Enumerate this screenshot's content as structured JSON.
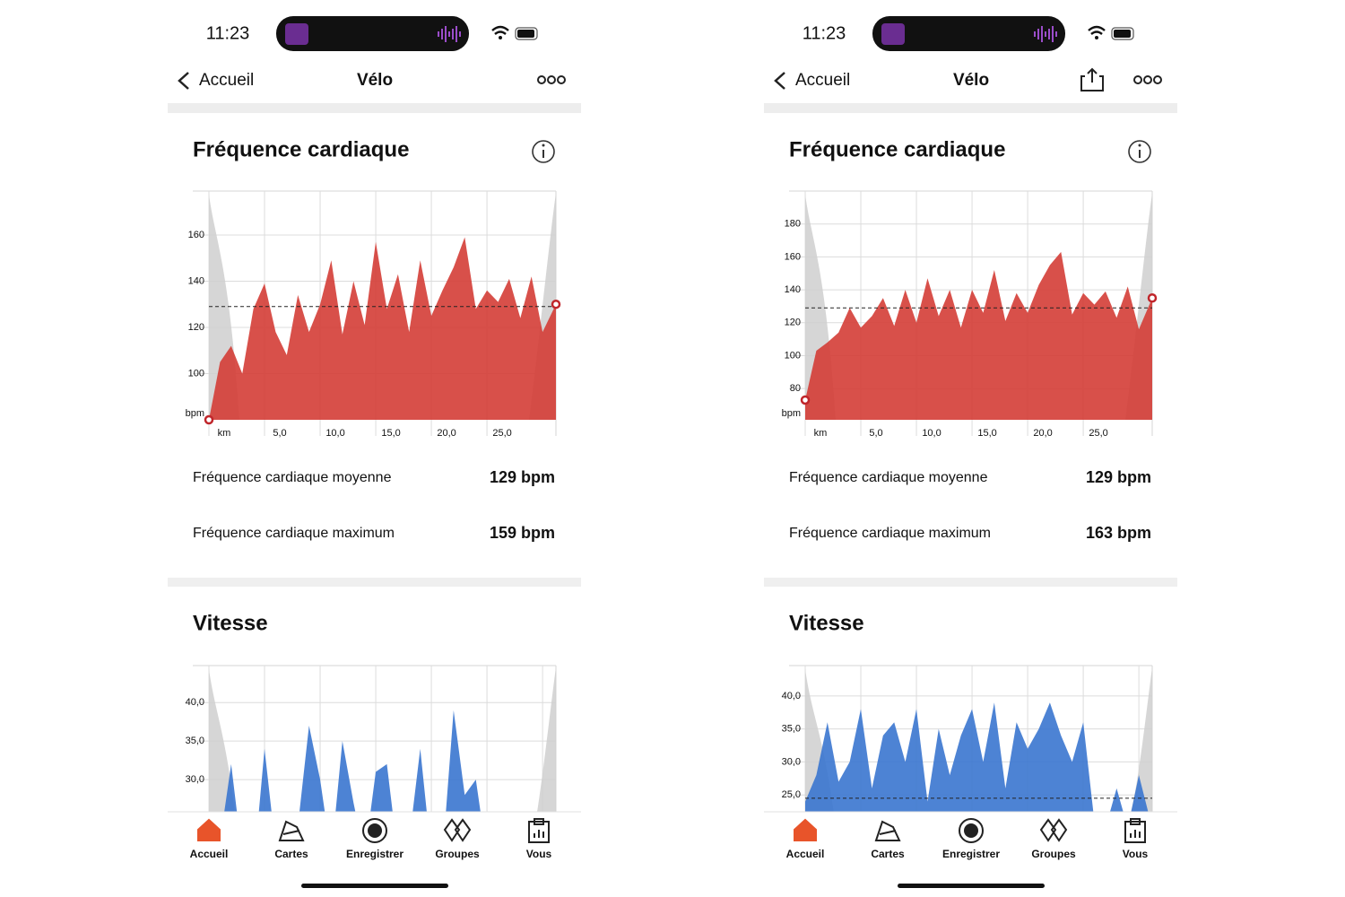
{
  "screens": [
    {
      "status_time": "11:23",
      "nav": {
        "back": "Accueil",
        "title": "Vélo"
      },
      "hr_section": {
        "title": "Fréquence cardiaque",
        "chart": {
          "type": "area",
          "y_unit": "bpm",
          "color": "#d43d36",
          "xlim": [
            0,
            31.2
          ],
          "ylim": [
            80,
            179
          ],
          "yticks": [
            100,
            120,
            140,
            160
          ],
          "xticks": [
            {
              "value": 0,
              "label": "km"
            },
            {
              "value": 5,
              "label": "5,0"
            },
            {
              "value": 10,
              "label": "10,0"
            },
            {
              "value": 15,
              "label": "15,0"
            },
            {
              "value": 20,
              "label": "20,0"
            },
            {
              "value": 25,
              "label": "25,0"
            }
          ],
          "average": 129,
          "x": [
            0,
            1,
            2,
            3,
            4,
            5,
            6,
            7,
            8,
            9,
            10,
            11,
            12,
            13,
            14,
            15,
            16,
            17,
            18,
            19,
            20,
            21,
            22,
            23,
            24,
            25,
            26,
            27,
            28,
            29,
            30,
            31.2
          ],
          "values": [
            80,
            105,
            112,
            100,
            128,
            139,
            118,
            108,
            134,
            118,
            130,
            149,
            117,
            140,
            121,
            157,
            128,
            143,
            118,
            149,
            125,
            136,
            146,
            159,
            128,
            136,
            131,
            141,
            124,
            142,
            118,
            130
          ]
        },
        "stats": [
          {
            "label": "Fréquence cardiaque moyenne",
            "value": "129 bpm"
          },
          {
            "label": "Fréquence cardiaque maximum",
            "value": "159 bpm"
          }
        ]
      },
      "speed_section": {
        "title": "Vitesse",
        "chart": {
          "type": "area",
          "color": "#3a76cf",
          "xlim": [
            0,
            31.2
          ],
          "ylim": [
            20,
            44.8
          ],
          "yticks": [
            {
              "value": 30,
              "label": "30,0"
            },
            {
              "value": 35,
              "label": "35,0"
            },
            {
              "value": 40,
              "label": "40,0"
            }
          ],
          "xgrid": [
            0,
            5,
            10,
            15,
            20,
            25,
            30
          ],
          "x": [
            0,
            1,
            2,
            3,
            4,
            5,
            6,
            7,
            8,
            9,
            10,
            11,
            12,
            13,
            14,
            15,
            16,
            17,
            18,
            19,
            20,
            21,
            22,
            23,
            24,
            25,
            26,
            27,
            28,
            29,
            30,
            31.2
          ],
          "values": [
            20,
            22,
            32,
            20,
            18,
            34,
            21,
            20,
            24,
            37,
            30,
            20,
            35,
            27,
            20,
            31,
            32,
            20,
            22,
            34,
            20,
            20,
            39,
            28,
            30,
            20,
            22,
            20,
            20,
            20,
            20,
            20
          ]
        }
      },
      "tabs": [
        "Accueil",
        "Cartes",
        "Enregistrer",
        "Groupes",
        "Vous"
      ]
    },
    {
      "status_time": "11:23",
      "nav": {
        "back": "Accueil",
        "title": "Vélo"
      },
      "hr_section": {
        "title": "Fréquence cardiaque",
        "chart": {
          "type": "area",
          "y_unit": "bpm",
          "color": "#d43d36",
          "xlim": [
            0,
            31.2
          ],
          "ylim": [
            61,
            200
          ],
          "yticks": [
            80,
            100,
            120,
            140,
            160,
            180
          ],
          "xticks": [
            {
              "value": 0,
              "label": "km"
            },
            {
              "value": 5,
              "label": "5,0"
            },
            {
              "value": 10,
              "label": "10,0"
            },
            {
              "value": 15,
              "label": "15,0"
            },
            {
              "value": 20,
              "label": "20,0"
            },
            {
              "value": 25,
              "label": "25,0"
            }
          ],
          "average": 129,
          "x": [
            0,
            1,
            2,
            3,
            4,
            5,
            6,
            7,
            8,
            9,
            10,
            11,
            12,
            13,
            14,
            15,
            16,
            17,
            18,
            19,
            20,
            21,
            22,
            23,
            24,
            25,
            26,
            27,
            28,
            29,
            30,
            31.2
          ],
          "values": [
            73,
            103,
            108,
            114,
            129,
            117,
            124,
            135,
            118,
            140,
            120,
            147,
            124,
            140,
            117,
            140,
            126,
            152,
            121,
            138,
            126,
            143,
            155,
            163,
            125,
            138,
            131,
            139,
            123,
            142,
            116,
            135
          ]
        },
        "stats": [
          {
            "label": "Fréquence cardiaque moyenne",
            "value": "129 bpm"
          },
          {
            "label": "Fréquence cardiaque maximum",
            "value": "163 bpm"
          }
        ]
      },
      "speed_section": {
        "title": "Vitesse",
        "chart": {
          "type": "area",
          "color": "#3a76cf",
          "xlim": [
            0,
            31.2
          ],
          "ylim": [
            20,
            44.6
          ],
          "yticks": [
            {
              "value": 25,
              "label": "25,0"
            },
            {
              "value": 30,
              "label": "30,0"
            },
            {
              "value": 35,
              "label": "35,0"
            },
            {
              "value": 40,
              "label": "40,0"
            }
          ],
          "xgrid": [
            0,
            5,
            10,
            15,
            20,
            25,
            30
          ],
          "average": 24.5,
          "x": [
            0,
            1,
            2,
            3,
            4,
            5,
            6,
            7,
            8,
            9,
            10,
            11,
            12,
            13,
            14,
            15,
            16,
            17,
            18,
            19,
            20,
            21,
            22,
            23,
            24,
            25,
            26,
            27,
            28,
            29,
            30,
            31.2
          ],
          "values": [
            24,
            28,
            36,
            27,
            30,
            38,
            26,
            34,
            36,
            30,
            38,
            24,
            35,
            28,
            34,
            38,
            30,
            39,
            26,
            36,
            32,
            35,
            39,
            34,
            30,
            36,
            21,
            20,
            26,
            20,
            28,
            20
          ]
        }
      },
      "tabs": [
        "Accueil",
        "Cartes",
        "Enregistrer",
        "Groupes",
        "Vous"
      ]
    }
  ]
}
